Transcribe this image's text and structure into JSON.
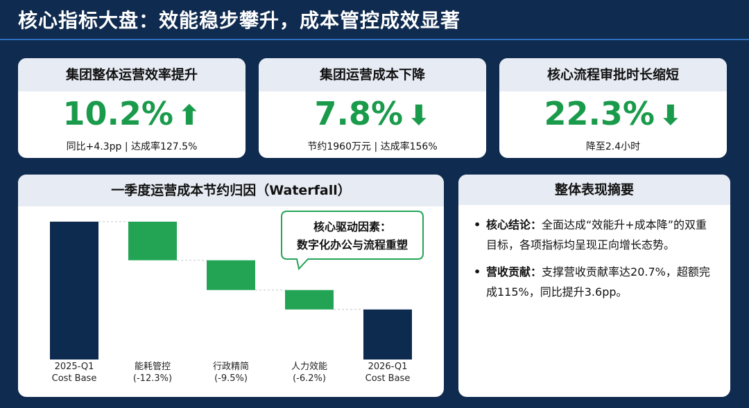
{
  "page_title": "核心指标大盘：效能稳步攀升，成本管控成效显著",
  "kpis": [
    {
      "label": "集团整体运营效率提升",
      "value": "10.2%",
      "arrow": "⬆",
      "sub": "同比+4.3pp | 达成率127.5%"
    },
    {
      "label": "集团运营成本下降",
      "value": "7.8%",
      "arrow": "⬇",
      "sub": "节约1960万元 | 达成率156%"
    },
    {
      "label": "核心流程审批时长缩短",
      "value": "22.3%",
      "arrow": "⬇",
      "sub": "降至2.4小时"
    }
  ],
  "chart_title": "一季度运营成本节约归因（Waterfall）",
  "callout": {
    "line1": "核心驱动因素：",
    "line2": "数字化办公与流程重塑"
  },
  "summary": {
    "title": "整体表现摘要",
    "items": [
      {
        "label": "核心结论：",
        "text": "全面达成“效能升+成本降”的双重目标，各项指标均呈现正向增长态势。"
      },
      {
        "label": "营收贡献：",
        "text": "支撑营收贡献率达20.7%，超额完成115%，同比提升3.6pp。"
      }
    ]
  },
  "colors": {
    "base": "#0d2a4f",
    "decrease": "#23a455",
    "kpi_green": "#1a9b4b",
    "background": "#0f2b4f"
  },
  "chart_data": {
    "type": "bar",
    "subtype": "waterfall",
    "title": "一季度运营成本节约归因（Waterfall）",
    "categories": [
      [
        "2025-Q1",
        "Cost Base"
      ],
      [
        "能耗管控",
        "(-12.3%)"
      ],
      [
        "行政精简",
        "(-9.5%)"
      ],
      [
        "人力效能",
        "(-6.2%)"
      ],
      [
        "2026-Q1",
        "Cost Base"
      ]
    ],
    "steps": [
      {
        "kind": "total",
        "value": 100
      },
      {
        "kind": "decrease",
        "value": -28.0
      },
      {
        "kind": "decrease",
        "value": -21.6
      },
      {
        "kind": "decrease",
        "value": -14.1
      },
      {
        "kind": "total",
        "value": 36.3
      }
    ],
    "ylim": [
      0,
      100
    ],
    "grid": false,
    "connectors": true
  }
}
